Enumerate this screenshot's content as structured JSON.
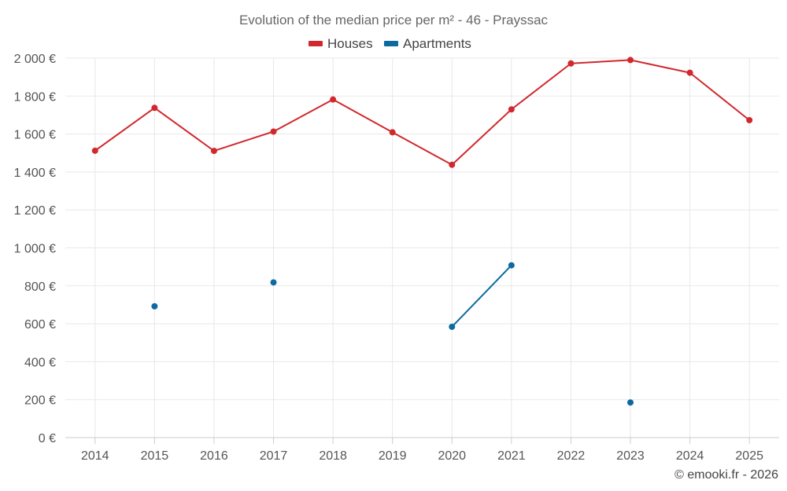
{
  "chart_data": {
    "type": "line",
    "title": "Evolution of the median price per m² - 46 - Prayssac",
    "categories": [
      "2014",
      "2015",
      "2016",
      "2017",
      "2018",
      "2019",
      "2020",
      "2021",
      "2022",
      "2023",
      "2024",
      "2025"
    ],
    "series": [
      {
        "name": "Houses",
        "color": "#d0282d",
        "values": [
          1512,
          1738,
          1511,
          1613,
          1782,
          1609,
          1438,
          1730,
          1972,
          1990,
          1923,
          1673
        ]
      },
      {
        "name": "Apartments",
        "color": "#0b6aa0",
        "values": [
          null,
          692,
          null,
          818,
          null,
          null,
          584,
          908,
          null,
          185,
          null,
          null
        ]
      }
    ],
    "ylim": [
      0,
      2000
    ],
    "yticks": [
      0,
      200,
      400,
      600,
      800,
      1000,
      1200,
      1400,
      1600,
      1800,
      2000
    ],
    "ytick_labels": [
      "0 €",
      "200 €",
      "400 €",
      "600 €",
      "800 €",
      "1 000 €",
      "1 200 €",
      "1 400 €",
      "1 600 €",
      "1 800 €",
      "2 000 €"
    ],
    "legend_position": "top-center",
    "grid": true
  },
  "credit": "© emooki.fr - 2026"
}
